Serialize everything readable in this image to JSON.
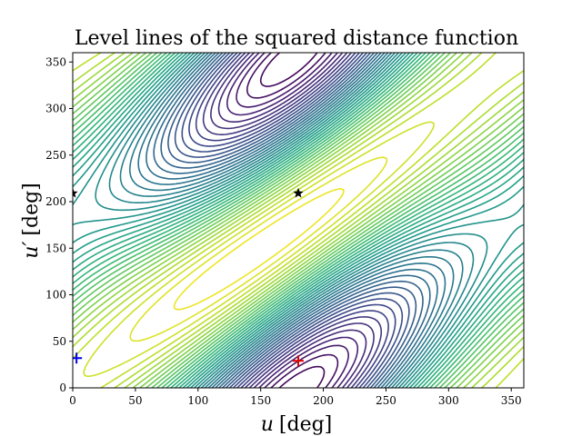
{
  "chart_data": {
    "type": "contour",
    "title": "Level lines of the squared distance function",
    "xlabel_symbol": "u",
    "xlabel_unit": "[deg]",
    "ylabel_symbol": "u′",
    "ylabel_unit": "[deg]",
    "xlim": [
      0,
      360
    ],
    "ylim": [
      0,
      360
    ],
    "xticks": [
      0,
      50,
      100,
      150,
      200,
      250,
      300,
      350
    ],
    "yticks": [
      0,
      50,
      100,
      150,
      200,
      250,
      300,
      350
    ],
    "grid": false,
    "colormap": "viridis",
    "levels": 40,
    "markers": [
      {
        "symbol": "star",
        "x": 180,
        "y": 209,
        "color": "#000000"
      },
      {
        "symbol": "star",
        "x": 0,
        "y": 209,
        "color": "#000000"
      },
      {
        "symbol": "plus",
        "x": 180,
        "y": 29,
        "color": "#e00000"
      },
      {
        "symbol": "plus",
        "x": 3,
        "y": 32,
        "color": "#0000ee"
      }
    ]
  }
}
